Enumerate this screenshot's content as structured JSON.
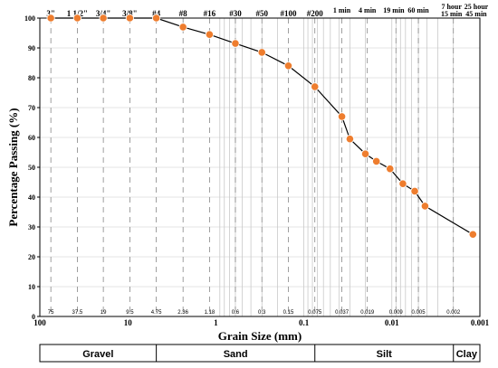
{
  "chart_data": {
    "type": "line",
    "xlabel": "Grain Size (mm)",
    "ylabel": "Percentage Passing (%)",
    "x_scale": "log",
    "xlim": [
      100,
      0.001
    ],
    "ylim": [
      0,
      100
    ],
    "y_ticks": [
      "0",
      "10",
      "20",
      "30",
      "40",
      "50",
      "60",
      "70",
      "80",
      "90",
      "100"
    ],
    "x_decade_labels": [
      {
        "value": 100,
        "label": "100"
      },
      {
        "value": 10,
        "label": "10"
      },
      {
        "value": 1,
        "label": "1"
      },
      {
        "value": 0.1,
        "label": "0.1"
      },
      {
        "value": 0.01,
        "label": "0.01"
      },
      {
        "value": 0.001,
        "label": "0.001"
      }
    ],
    "sieve_sizes": [
      {
        "value": 75,
        "label": "75"
      },
      {
        "value": 37.5,
        "label": "37.5"
      },
      {
        "value": 19,
        "label": "19"
      },
      {
        "value": 9.5,
        "label": "9.5"
      },
      {
        "value": 4.75,
        "label": "4.75"
      },
      {
        "value": 2.36,
        "label": "2.36"
      },
      {
        "value": 1.18,
        "label": "1.18"
      },
      {
        "value": 0.6,
        "label": "0.6"
      },
      {
        "value": 0.3,
        "label": "0.3"
      },
      {
        "value": 0.15,
        "label": "0.15"
      },
      {
        "value": 0.075,
        "label": "0.075"
      },
      {
        "value": 0.037,
        "label": "0.037"
      },
      {
        "value": 0.019,
        "label": "0.019"
      },
      {
        "value": 0.009,
        "label": "0.009"
      },
      {
        "value": 0.005,
        "label": "0.005"
      },
      {
        "value": 0.002,
        "label": "0.002"
      }
    ],
    "sieve_labels": [
      {
        "value": 75,
        "label": "3\""
      },
      {
        "value": 37.5,
        "label": "1 1/2\""
      },
      {
        "value": 19,
        "label": "3/4\""
      },
      {
        "value": 9.5,
        "label": "3/8\""
      },
      {
        "value": 4.75,
        "label": "#4"
      },
      {
        "value": 2.36,
        "label": "#8"
      },
      {
        "value": 1.18,
        "label": "#16"
      },
      {
        "value": 0.6,
        "label": "#30"
      },
      {
        "value": 0.3,
        "label": "#50"
      },
      {
        "value": 0.15,
        "label": "#100"
      },
      {
        "value": 0.075,
        "label": "#200"
      }
    ],
    "time_labels": [
      {
        "value": 0.037,
        "lines": [
          "1 min"
        ]
      },
      {
        "value": 0.019,
        "lines": [
          "4 min"
        ]
      },
      {
        "value": 0.0095,
        "lines": [
          "19 min"
        ]
      },
      {
        "value": 0.005,
        "lines": [
          "60 min"
        ]
      },
      {
        "value": 0.0021,
        "lines": [
          "7 hour",
          "15 min"
        ]
      },
      {
        "value": 0.0011,
        "lines": [
          "25 hour",
          "45 min"
        ]
      }
    ],
    "series": [
      {
        "x": [
          75,
          37.5,
          19,
          9.5,
          4.75,
          2.36,
          1.18,
          0.6,
          0.3,
          0.15,
          0.075,
          0.037,
          0.03,
          0.02,
          0.015,
          0.0105,
          0.0075,
          0.0055,
          0.0042,
          0.0012
        ],
        "y": [
          100,
          100,
          100,
          100,
          100,
          97,
          94.5,
          91.5,
          88.5,
          84,
          77,
          67,
          59.5,
          54.5,
          52,
          49.5,
          44.5,
          42,
          37,
          27.5
        ]
      }
    ],
    "classification": [
      {
        "label": "Gravel",
        "from": 100,
        "to": 4.75
      },
      {
        "label": "Sand",
        "from": 4.75,
        "to": 0.075
      },
      {
        "label": "Silt",
        "from": 0.075,
        "to": 0.002
      },
      {
        "label": "Clay",
        "from": 0.002,
        "to": 0.001
      }
    ],
    "colors": {
      "marker": "#ee7d2e",
      "line": "#000000"
    }
  }
}
